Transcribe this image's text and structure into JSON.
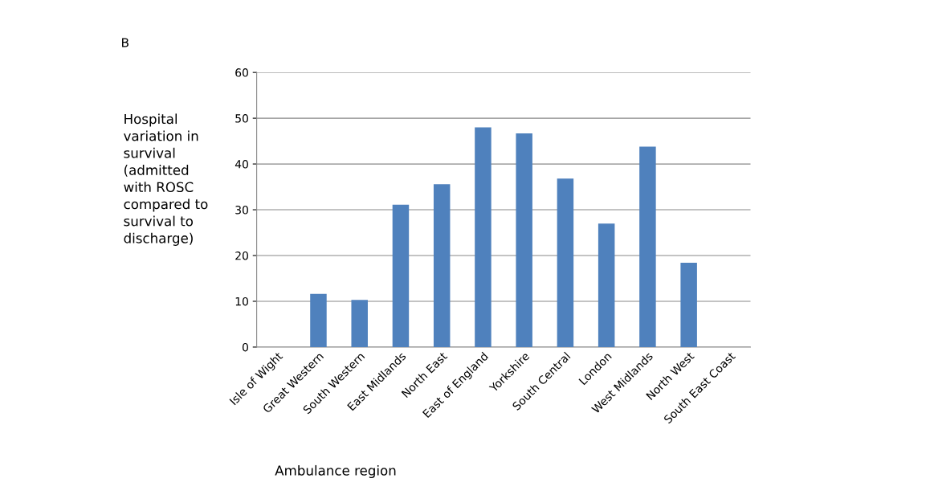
{
  "chart_data": {
    "type": "bar",
    "title": "B",
    "categories": [
      "Isle of Wight",
      "Great Western",
      "South Western",
      "East Midlands",
      "North East",
      "East of England",
      "Yorkshire",
      "South Central",
      "London",
      "West Midlands",
      "North West",
      "South East Coast"
    ],
    "values": [
      0,
      11.6,
      10.3,
      31.1,
      35.6,
      48.0,
      46.7,
      36.8,
      27.0,
      43.8,
      18.4,
      0
    ],
    "color": "#4f81bd",
    "ylabel": "Hospital\nvariation in\nsurvival\n(admitted\nwith ROSC\ncompared to\nsurvival to\ndischarge)",
    "xlabel": "Ambulance region",
    "ylim": [
      0,
      60
    ],
    "yticks": [
      0,
      10,
      20,
      30,
      40,
      50,
      60
    ],
    "grid": "y"
  }
}
